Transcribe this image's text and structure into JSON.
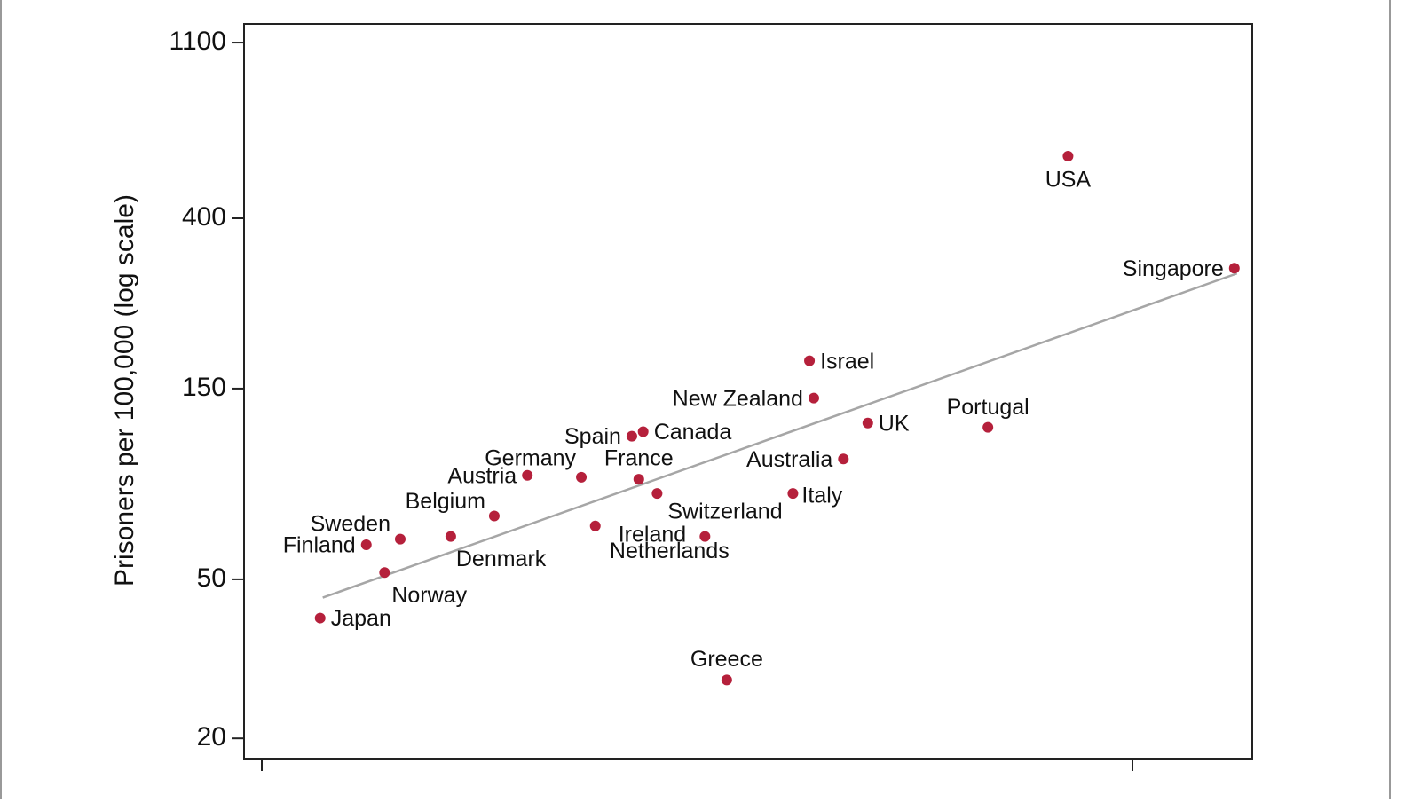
{
  "chart_data": {
    "type": "scatter",
    "y_label": "Prisoners per 100,000 (log scale)",
    "y_scale": "log",
    "color": "#b5203b",
    "labels": [
      "USA",
      "Singapore",
      "Israel",
      "New Zealand",
      "UK",
      "Portugal",
      "Canada",
      "Spain",
      "Australia",
      "France",
      "Germany",
      "Austria",
      "Italy",
      "Switzerland",
      "Belgium",
      "Ireland",
      "Netherlands",
      "Denmark",
      "Sweden",
      "Finland",
      "Norway",
      "Japan",
      "Greece"
    ],
    "x": [
      0.926,
      1.117,
      0.629,
      0.634,
      0.696,
      0.834,
      0.438,
      0.425,
      0.668,
      0.433,
      0.367,
      0.305,
      0.61,
      0.454,
      0.267,
      0.383,
      0.509,
      0.217,
      0.159,
      0.12,
      0.141,
      0.067,
      0.534
    ],
    "values": [
      572,
      300,
      176,
      142,
      123,
      120,
      117,
      114,
      100,
      89,
      90,
      91,
      82,
      82,
      72,
      68,
      64,
      64,
      63,
      61,
      52,
      40,
      28
    ],
    "trend_line": {
      "color": "#a6a6a6",
      "x": [
        0.07,
        1.12
      ],
      "values": [
        45,
        291
      ]
    },
    "xlim": [
      -0.0204,
      1.1376
    ],
    "xticks": [
      0,
      1
    ],
    "ylim": [
      17.8,
      1225
    ],
    "yticks": [
      20,
      50,
      150,
      400,
      1100
    ]
  }
}
